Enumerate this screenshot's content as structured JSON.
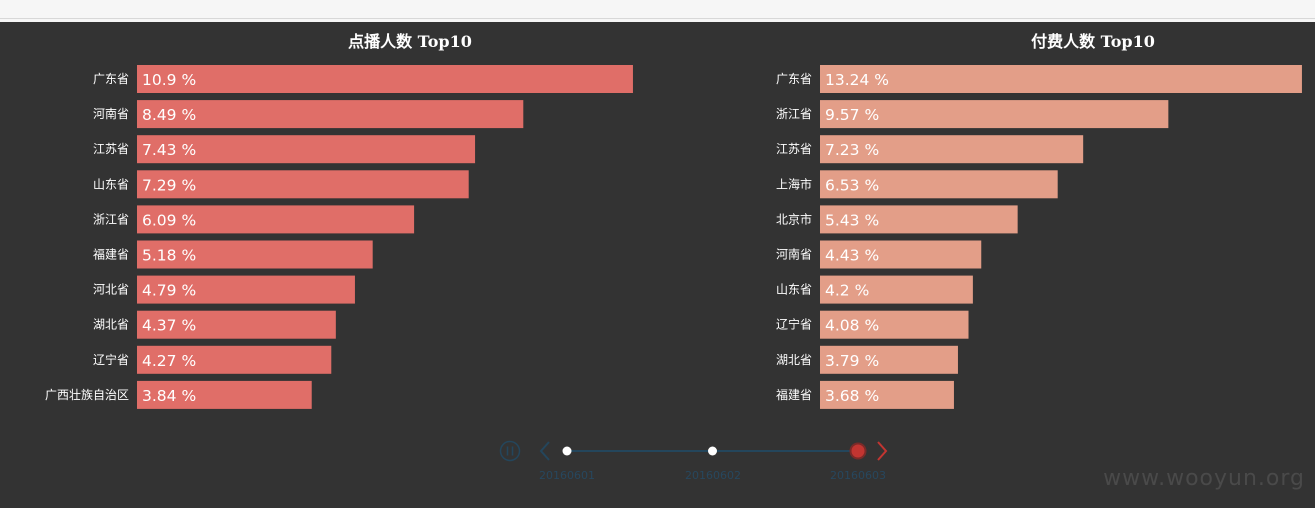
{
  "chart_data": [
    {
      "type": "bar",
      "orientation": "horizontal",
      "title": "点播人数 Top10",
      "color": "#e06e68",
      "categories": [
        "广东省",
        "河南省",
        "江苏省",
        "山东省",
        "浙江省",
        "福建省",
        "河北省",
        "湖北省",
        "辽宁省",
        "广西壮族自治区"
      ],
      "values": [
        10.9,
        8.49,
        7.43,
        7.29,
        6.09,
        5.18,
        4.79,
        4.37,
        4.27,
        3.84
      ],
      "value_labels": [
        "10.9 %",
        "8.49 %",
        "7.43 %",
        "7.29 %",
        "6.09 %",
        "5.18 %",
        "4.79 %",
        "4.37 %",
        "4.27 %",
        "3.84 %"
      ],
      "grid": false
    },
    {
      "type": "bar",
      "orientation": "horizontal",
      "title": "付费人数 Top10",
      "color": "#e39e88",
      "categories": [
        "广东省",
        "浙江省",
        "江苏省",
        "上海市",
        "北京市",
        "河南省",
        "山东省",
        "辽宁省",
        "湖北省",
        "福建省"
      ],
      "values": [
        13.24,
        9.57,
        7.23,
        6.53,
        5.43,
        4.43,
        4.2,
        4.08,
        3.79,
        3.68
      ],
      "value_labels": [
        "13.24 %",
        "9.57 %",
        "7.23 %",
        "6.53 %",
        "5.43 %",
        "4.43 %",
        "4.2 %",
        "4.08 %",
        "3.79 %",
        "3.68 %"
      ],
      "grid": false
    }
  ],
  "timeline": {
    "dates": [
      "20160601",
      "20160602",
      "20160603"
    ],
    "current_index": 2,
    "line_color": "#24465c",
    "active_color": "#c23531",
    "icons": {
      "play": "pause-icon",
      "prev": "chevron-left-icon",
      "next": "chevron-right-icon"
    }
  },
  "watermark": "www.wooyun.org"
}
